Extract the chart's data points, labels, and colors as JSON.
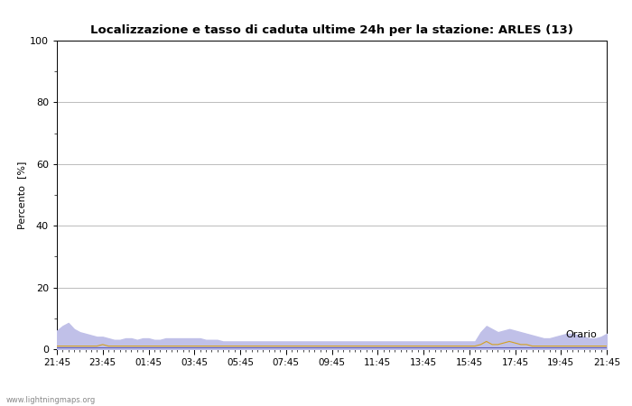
{
  "title": "Localizzazione e tasso di caduta ultime 24h per la stazione: ARLES (13)",
  "ylabel": "Percento  [%]",
  "xlabel_right": "Orario",
  "watermark": "www.lightningmaps.org",
  "ylim": [
    0,
    100
  ],
  "yticks": [
    0,
    20,
    40,
    60,
    80,
    100
  ],
  "yticks_minor": [
    10,
    30,
    50,
    70,
    90
  ],
  "x_labels": [
    "21:45",
    "23:45",
    "01:45",
    "03:45",
    "05:45",
    "07:45",
    "09:45",
    "11:45",
    "13:45",
    "15:45",
    "17:45",
    "19:45",
    "21:45"
  ],
  "bg_color": "#ffffff",
  "plot_bg_color": "#ffffff",
  "grid_color": "#bbbbbb",
  "fill_rete_color": "#e8d898",
  "fill_arles_color": "#c0c0e8",
  "line_rete_color": "#d4a020",
  "line_arles_color": "#6060bb",
  "n_points": 97,
  "fill_rete_data": [
    1.0,
    1.0,
    1.0,
    1.0,
    1.0,
    1.0,
    1.0,
    1.0,
    1.5,
    1.0,
    1.0,
    1.0,
    1.0,
    1.0,
    1.0,
    1.0,
    1.0,
    1.0,
    1.0,
    1.0,
    1.0,
    1.0,
    1.0,
    1.0,
    1.0,
    1.0,
    1.0,
    1.0,
    1.0,
    1.0,
    1.0,
    1.0,
    1.0,
    1.0,
    1.0,
    1.0,
    1.0,
    1.0,
    1.0,
    1.0,
    1.0,
    1.0,
    1.0,
    1.0,
    1.0,
    1.0,
    1.0,
    1.0,
    1.0,
    1.0,
    1.0,
    1.0,
    1.0,
    1.0,
    1.0,
    1.0,
    1.0,
    1.0,
    1.0,
    1.0,
    1.0,
    1.0,
    1.0,
    1.0,
    1.0,
    1.0,
    1.0,
    1.0,
    1.0,
    1.0,
    1.0,
    1.0,
    1.0,
    1.0,
    1.5,
    2.5,
    1.5,
    1.5,
    2.0,
    2.5,
    2.0,
    1.5,
    1.5,
    1.0,
    1.0,
    1.0,
    1.0,
    1.0,
    1.0,
    1.0,
    1.0,
    1.0,
    1.0,
    1.0,
    1.0,
    1.0,
    1.0
  ],
  "fill_arles_data": [
    6.0,
    7.5,
    8.5,
    6.5,
    5.5,
    5.0,
    4.5,
    4.0,
    4.0,
    3.5,
    3.0,
    3.0,
    3.5,
    3.5,
    3.0,
    3.5,
    3.5,
    3.0,
    3.0,
    3.5,
    3.5,
    3.5,
    3.5,
    3.5,
    3.5,
    3.5,
    3.0,
    3.0,
    3.0,
    2.5,
    2.5,
    2.5,
    2.5,
    2.5,
    2.5,
    2.5,
    2.5,
    2.5,
    2.5,
    2.5,
    2.5,
    2.5,
    2.5,
    2.5,
    2.5,
    2.5,
    2.5,
    2.5,
    2.5,
    2.5,
    2.5,
    2.5,
    2.5,
    2.5,
    2.5,
    2.5,
    2.5,
    2.5,
    2.5,
    2.5,
    2.5,
    2.5,
    2.5,
    2.5,
    2.5,
    2.5,
    2.5,
    2.5,
    2.5,
    2.5,
    2.5,
    2.5,
    2.5,
    2.5,
    5.5,
    7.5,
    6.5,
    5.5,
    6.0,
    6.5,
    6.0,
    5.5,
    5.0,
    4.5,
    4.0,
    3.5,
    3.5,
    4.0,
    4.5,
    5.0,
    5.0,
    4.5,
    4.0,
    3.5,
    3.5,
    4.0,
    5.0
  ],
  "line_rete_data": [
    1.0,
    1.0,
    1.0,
    1.0,
    1.0,
    1.0,
    1.0,
    1.0,
    1.5,
    1.0,
    1.0,
    1.0,
    1.0,
    1.0,
    1.0,
    1.0,
    1.0,
    1.0,
    1.0,
    1.0,
    1.0,
    1.0,
    1.0,
    1.0,
    1.0,
    1.0,
    1.0,
    1.0,
    1.0,
    1.0,
    1.0,
    1.0,
    1.0,
    1.0,
    1.0,
    1.0,
    1.0,
    1.0,
    1.0,
    1.0,
    1.0,
    1.0,
    1.0,
    1.0,
    1.0,
    1.0,
    1.0,
    1.0,
    1.0,
    1.0,
    1.0,
    1.0,
    1.0,
    1.0,
    1.0,
    1.0,
    1.0,
    1.0,
    1.0,
    1.0,
    1.0,
    1.0,
    1.0,
    1.0,
    1.0,
    1.0,
    1.0,
    1.0,
    1.0,
    1.0,
    1.0,
    1.0,
    1.0,
    1.0,
    1.5,
    2.5,
    1.5,
    1.5,
    2.0,
    2.5,
    2.0,
    1.5,
    1.5,
    1.0,
    1.0,
    1.0,
    1.0,
    1.0,
    1.0,
    1.0,
    1.0,
    1.0,
    1.0,
    1.0,
    1.0,
    1.0,
    1.0
  ],
  "line_arles_data": [
    0.5,
    0.5,
    0.5,
    0.5,
    0.5,
    0.5,
    0.5,
    0.5,
    0.5,
    0.5,
    0.5,
    0.5,
    0.5,
    0.5,
    0.5,
    0.5,
    0.5,
    0.5,
    0.5,
    0.5,
    0.5,
    0.5,
    0.5,
    0.5,
    0.5,
    0.5,
    0.5,
    0.5,
    0.5,
    0.5,
    0.5,
    0.5,
    0.5,
    0.5,
    0.5,
    0.5,
    0.5,
    0.5,
    0.5,
    0.5,
    0.5,
    0.5,
    0.5,
    0.5,
    0.5,
    0.5,
    0.5,
    0.5,
    0.5,
    0.5,
    0.5,
    0.5,
    0.5,
    0.5,
    0.5,
    0.5,
    0.5,
    0.5,
    0.5,
    0.5,
    0.5,
    0.5,
    0.5,
    0.5,
    0.5,
    0.5,
    0.5,
    0.5,
    0.5,
    0.5,
    0.5,
    0.5,
    0.5,
    0.5,
    0.5,
    0.5,
    0.5,
    0.5,
    0.5,
    0.5,
    0.5,
    0.5,
    0.5,
    0.5,
    0.5,
    0.5,
    0.5,
    0.5,
    0.5,
    0.5,
    0.5,
    0.5,
    0.5,
    0.5,
    0.5,
    0.5,
    0.5
  ]
}
